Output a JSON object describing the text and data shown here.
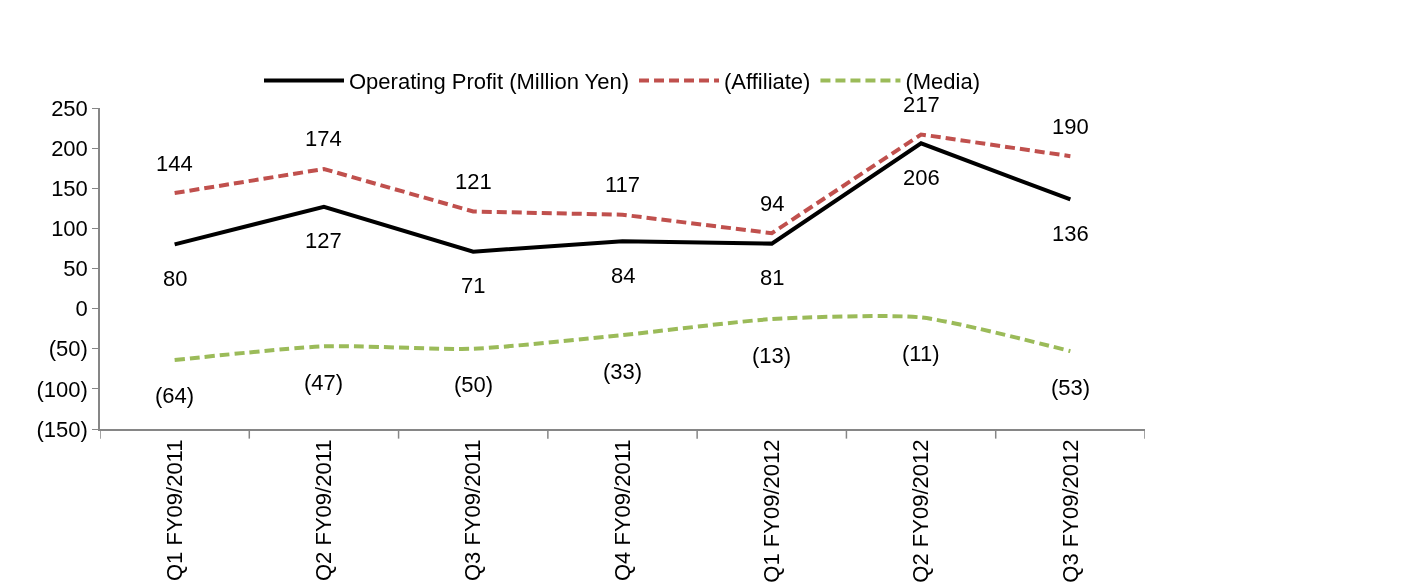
{
  "chart_data": {
    "type": "line",
    "categories": [
      "Q1 FY09/2011",
      "Q2 FY09/2011",
      "Q3 FY09/2011",
      "Q4 FY09/2011",
      "Q1 FY09/2012",
      "Q2 FY09/2012",
      "Q3 FY09/2012"
    ],
    "series": [
      {
        "name": "Operating Profit (Million Yen)",
        "color": "#000000",
        "line_style": "solid",
        "values": [
          80,
          127,
          71,
          84,
          81,
          206,
          136
        ],
        "value_labels": [
          "80",
          "127",
          "71",
          "84",
          "81",
          "206",
          "136"
        ]
      },
      {
        "name": "(Affiliate)",
        "color": "#c0504d",
        "line_style": "dashed",
        "values": [
          144,
          174,
          121,
          117,
          94,
          217,
          190
        ],
        "value_labels": [
          "144",
          "174",
          "121",
          "117",
          "94",
          "217",
          "190"
        ]
      },
      {
        "name": "(Media)",
        "color": "#9bbb59",
        "line_style": "dashed",
        "values": [
          -64,
          -47,
          -50,
          -33,
          -13,
          -11,
          -53
        ],
        "value_labels": [
          "(64)",
          "(47)",
          "(50)",
          "(33)",
          "(13)",
          "(11)",
          "(53)"
        ]
      }
    ],
    "ylim": [
      -150,
      250
    ],
    "yticks": [
      {
        "value": -150,
        "label": "(150)"
      },
      {
        "value": -100,
        "label": "(100)"
      },
      {
        "value": -50,
        "label": "(50)"
      },
      0,
      50,
      100,
      150,
      200,
      250
    ],
    "grid": false,
    "legend": "top",
    "marker": "none"
  }
}
